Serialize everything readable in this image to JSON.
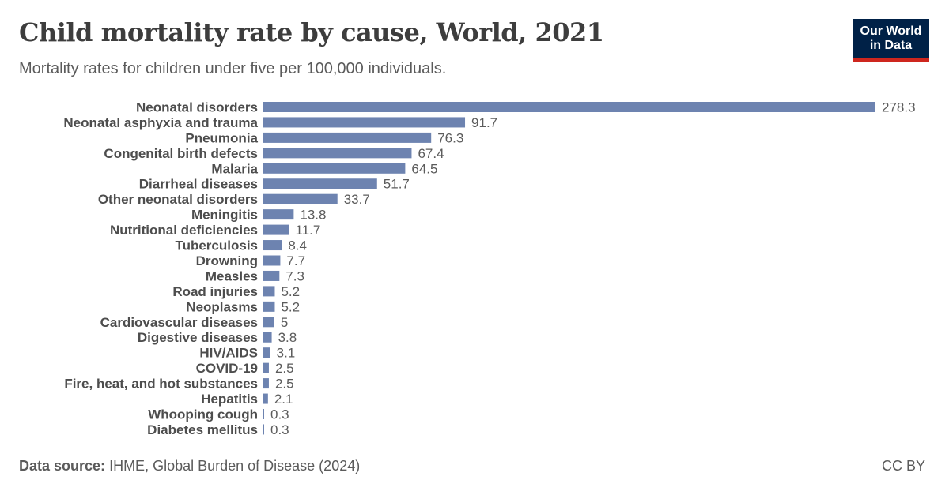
{
  "header": {
    "title": "Child mortality rate by cause, World, 2021",
    "subtitle": "Mortality rates for children under five per 100,000 individuals."
  },
  "logo": {
    "line1": "Our World",
    "line2": "in Data"
  },
  "footer": {
    "source_label": "Data source:",
    "source_text": "IHME, Global Burden of Disease (2024)",
    "license": "CC BY"
  },
  "colors": {
    "bar": "#6d83b0",
    "logo_bg": "#002147",
    "logo_accent": "#ce261e"
  },
  "chart_data": {
    "type": "bar",
    "orientation": "horizontal",
    "categories": [
      "Neonatal disorders",
      "Neonatal asphyxia and trauma",
      "Pneumonia",
      "Congenital birth defects",
      "Malaria",
      "Diarrheal diseases",
      "Other neonatal disorders",
      "Meningitis",
      "Nutritional deficiencies",
      "Tuberculosis",
      "Drowning",
      "Measles",
      "Road injuries",
      "Neoplasms",
      "Cardiovascular diseases",
      "Digestive diseases",
      "HIV/AIDS",
      "COVID-19",
      "Fire, heat, and hot substances",
      "Hepatitis",
      "Whooping cough",
      "Diabetes mellitus"
    ],
    "values": [
      278.3,
      91.7,
      76.3,
      67.4,
      64.5,
      51.7,
      33.7,
      13.8,
      11.7,
      8.4,
      7.7,
      7.3,
      5.2,
      5.2,
      5,
      3.8,
      3.1,
      2.5,
      2.5,
      2.1,
      0.3,
      0.3
    ],
    "value_labels": [
      "278.3",
      "91.7",
      "76.3",
      "67.4",
      "64.5",
      "51.7",
      "33.7",
      "13.8",
      "11.7",
      "8.4",
      "7.7",
      "7.3",
      "5.2",
      "5.2",
      "5",
      "3.8",
      "3.1",
      "2.5",
      "2.5",
      "2.1",
      "0.3",
      "0.3"
    ],
    "xlim": [
      0,
      278.3
    ],
    "grid": false,
    "legend": "none"
  }
}
